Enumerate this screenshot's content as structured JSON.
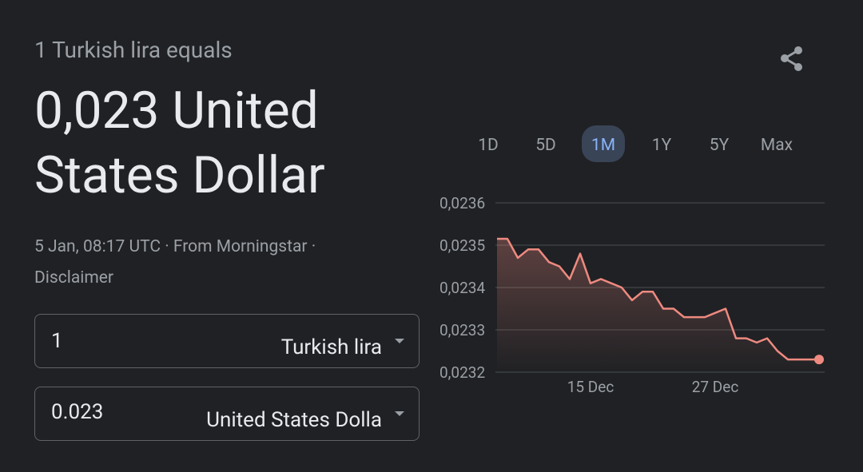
{
  "header": {
    "subtitle": "1 Turkish lira equals",
    "result": "0,023 United States Dollar",
    "meta": "5 Jan, 08:17 UTC · From Morningstar ·",
    "disclaimer": "Disclaimer"
  },
  "converter": {
    "from": {
      "amount": "1",
      "currency": "Turkish lira"
    },
    "to": {
      "amount": "0.023",
      "currency": "United States Dolla"
    }
  },
  "ranges": {
    "labels": [
      "1D",
      "5D",
      "1M",
      "1Y",
      "5Y",
      "Max"
    ],
    "selected": 2
  },
  "chart_data": {
    "type": "line",
    "categories": [
      null,
      null,
      null,
      null,
      null,
      null,
      null,
      null,
      null,
      "15 Dec",
      null,
      null,
      null,
      null,
      null,
      null,
      null,
      null,
      null,
      null,
      null,
      "27 Dec",
      null,
      null,
      null,
      null,
      null,
      null,
      null,
      null,
      null,
      null
    ],
    "values": [
      0.023515,
      0.023515,
      0.02347,
      0.02349,
      0.02349,
      0.02346,
      0.02345,
      0.02342,
      0.02348,
      0.02341,
      0.02342,
      0.02341,
      0.0234,
      0.02337,
      0.02339,
      0.02339,
      0.02335,
      0.02335,
      0.02333,
      0.02333,
      0.02333,
      0.02334,
      0.02335,
      0.02328,
      0.02328,
      0.02327,
      0.02328,
      0.02325,
      0.02323,
      0.02323,
      0.02323,
      0.02323
    ],
    "color": "#ee8a80",
    "ylim": [
      0.0232,
      0.0236
    ],
    "yticks": [
      {
        "value": 0.0232,
        "label": "0,0232"
      },
      {
        "value": 0.0233,
        "label": "0,0233"
      },
      {
        "value": 0.0234,
        "label": "0,0234"
      },
      {
        "value": 0.0235,
        "label": "0,0235"
      },
      {
        "value": 0.0236,
        "label": "0,0236"
      }
    ],
    "grid": true
  }
}
